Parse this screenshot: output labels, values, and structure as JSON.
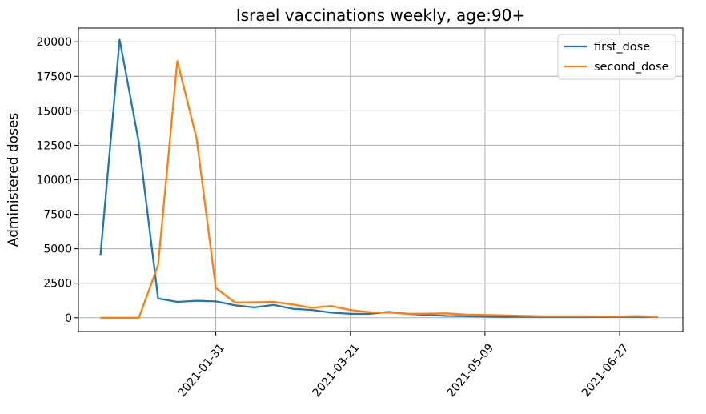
{
  "chart_data": {
    "type": "line",
    "title": "Israel vaccinations weekly, age:90+",
    "xlabel": "",
    "ylabel": "Administered doses",
    "ylim": [
      -1000,
      21000
    ],
    "yticks": [
      0,
      2500,
      5000,
      7500,
      10000,
      12500,
      15000,
      17500,
      20000
    ],
    "yticklabels": [
      "0",
      "2500",
      "5000",
      "7500",
      "10000",
      "12500",
      "15000",
      "17500",
      "20000"
    ],
    "xlim": [
      "2020-12-12",
      "2021-07-20"
    ],
    "xticks": [
      "2021-01-31",
      "2021-03-21",
      "2021-05-09",
      "2021-06-27"
    ],
    "grid": true,
    "legend": "top-right",
    "x": [
      "2020-12-20",
      "2020-12-27",
      "2021-01-03",
      "2021-01-10",
      "2021-01-17",
      "2021-01-24",
      "2021-01-31",
      "2021-02-07",
      "2021-02-14",
      "2021-02-21",
      "2021-02-28",
      "2021-03-07",
      "2021-03-14",
      "2021-03-21",
      "2021-03-28",
      "2021-04-04",
      "2021-04-11",
      "2021-04-18",
      "2021-04-25",
      "2021-05-02",
      "2021-05-09",
      "2021-05-16",
      "2021-05-23",
      "2021-05-30",
      "2021-06-06",
      "2021-06-13",
      "2021-06-20",
      "2021-06-27",
      "2021-07-04",
      "2021-07-11"
    ],
    "series": [
      {
        "name": "first_dose",
        "color": "#1f77b4",
        "values": [
          4500,
          20150,
          12700,
          1400,
          1150,
          1230,
          1180,
          900,
          750,
          930,
          650,
          560,
          370,
          280,
          290,
          420,
          280,
          200,
          130,
          110,
          90,
          60,
          70,
          60,
          60,
          60,
          50,
          60,
          60,
          50
        ]
      },
      {
        "name": "second_dose",
        "color": "#ff7f0e",
        "values": [
          0,
          0,
          0,
          3800,
          18600,
          13000,
          2150,
          1100,
          1120,
          1150,
          960,
          720,
          850,
          560,
          400,
          380,
          280,
          300,
          320,
          230,
          200,
          170,
          140,
          110,
          110,
          110,
          100,
          100,
          130,
          50
        ]
      }
    ]
  }
}
